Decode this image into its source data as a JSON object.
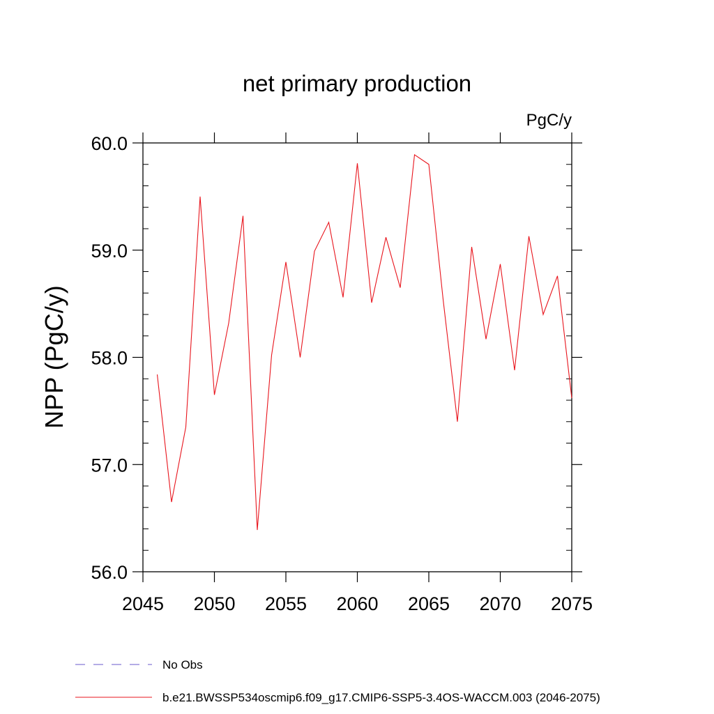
{
  "chart_data": {
    "type": "line",
    "title": "net primary production",
    "units_label": "PgC/y",
    "ylabel": "NPP  (PgC/y)",
    "xlabel": "",
    "xlim": [
      2045,
      2075
    ],
    "ylim": [
      56.0,
      60.0
    ],
    "x_ticks": [
      2045,
      2050,
      2055,
      2060,
      2065,
      2070,
      2075
    ],
    "x_tick_labels": [
      "2045",
      "2050",
      "2055",
      "2060",
      "2065",
      "2070",
      "2075"
    ],
    "y_ticks": [
      56.0,
      57.0,
      58.0,
      59.0,
      60.0
    ],
    "y_tick_labels": [
      "56.0",
      "57.0",
      "58.0",
      "59.0",
      "60.0"
    ],
    "grid": false,
    "legend_placement": "bottom",
    "legend": [
      {
        "label": "No Obs",
        "color": "#6a5acd",
        "style": "dashed"
      },
      {
        "label": "b.e21.BWSSP534oscmip6.f09_g17.CMIP6-SSP5-3.4OS-WACCM.003 (2046-2075)",
        "color": "#e8141c",
        "style": "solid"
      }
    ],
    "series": [
      {
        "name": "b.e21.BWSSP534oscmip6.f09_g17.CMIP6-SSP5-3.4OS-WACCM.003 (2046-2075)",
        "color": "#e8141c",
        "x": [
          2046,
          2047,
          2048,
          2049,
          2050,
          2051,
          2052,
          2053,
          2054,
          2055,
          2056,
          2057,
          2058,
          2059,
          2060,
          2061,
          2062,
          2063,
          2064,
          2065,
          2066,
          2067,
          2068,
          2069,
          2070,
          2071,
          2072,
          2073,
          2074,
          2075
        ],
        "values": [
          57.84,
          56.65,
          57.35,
          59.5,
          57.65,
          58.32,
          59.32,
          56.39,
          58.02,
          58.89,
          58.0,
          58.99,
          59.26,
          58.56,
          59.81,
          58.51,
          59.12,
          58.65,
          59.89,
          59.8,
          58.54,
          57.4,
          59.03,
          58.17,
          58.87,
          57.88,
          59.13,
          58.4,
          58.76,
          57.62
        ]
      }
    ]
  }
}
